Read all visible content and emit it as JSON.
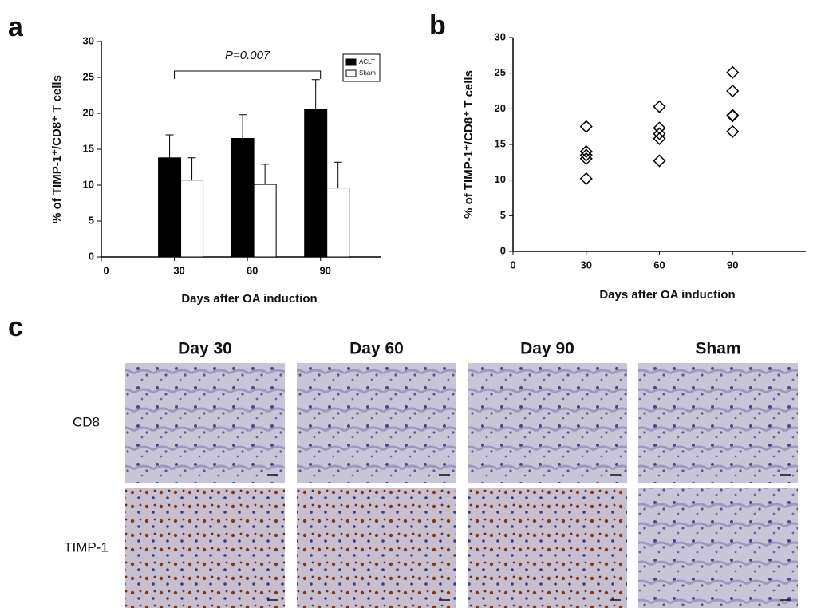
{
  "panel_labels": [
    "a",
    "b",
    "c"
  ],
  "chart_data": [
    {
      "type": "bar",
      "ylabel": "% of TIMP-1⁺/CD8⁺ T cells",
      "xlabel": "Days after OA induction",
      "annotation": "P=0.007",
      "x": [
        30,
        60,
        90
      ],
      "series": [
        {
          "name": "ACLT",
          "color": "#000000",
          "values": [
            13.8,
            16.5,
            20.5
          ],
          "errors": [
            3.2,
            3.3,
            4.2
          ]
        },
        {
          "name": "Sham",
          "color": "#ffffff",
          "values": [
            10.7,
            10.1,
            9.6
          ],
          "errors": [
            3.1,
            2.8,
            3.6
          ]
        }
      ],
      "xlim": [
        0,
        115
      ],
      "xticks": [
        0,
        30,
        60,
        90
      ],
      "ylim": [
        0,
        30
      ],
      "yticks": [
        0,
        5,
        10,
        15,
        20,
        25,
        30
      ],
      "legend": "upper right"
    },
    {
      "type": "scatter",
      "ylabel": "% of TIMP-1⁺/CD8⁺ T cells",
      "xlabel": "Days after OA induction",
      "x": [
        30,
        30,
        30,
        30,
        30,
        60,
        60,
        60,
        60,
        60,
        90,
        90,
        90,
        90,
        90
      ],
      "values": [
        17.5,
        14.0,
        13.5,
        13.0,
        10.2,
        20.3,
        17.3,
        16.5,
        15.8,
        12.7,
        25.1,
        22.5,
        19.1,
        19.0,
        16.8
      ],
      "color": "#000000",
      "xlim": [
        0,
        120
      ],
      "xticks": [
        0,
        30,
        60,
        90
      ],
      "ylim": [
        0,
        30
      ],
      "yticks": [
        0,
        5,
        10,
        15,
        20,
        25,
        30
      ]
    }
  ],
  "micrographs": {
    "columns": [
      "Day 30",
      "Day 60",
      "Day 90",
      "Sham"
    ],
    "rows": [
      "CD8",
      "TIMP-1"
    ]
  }
}
